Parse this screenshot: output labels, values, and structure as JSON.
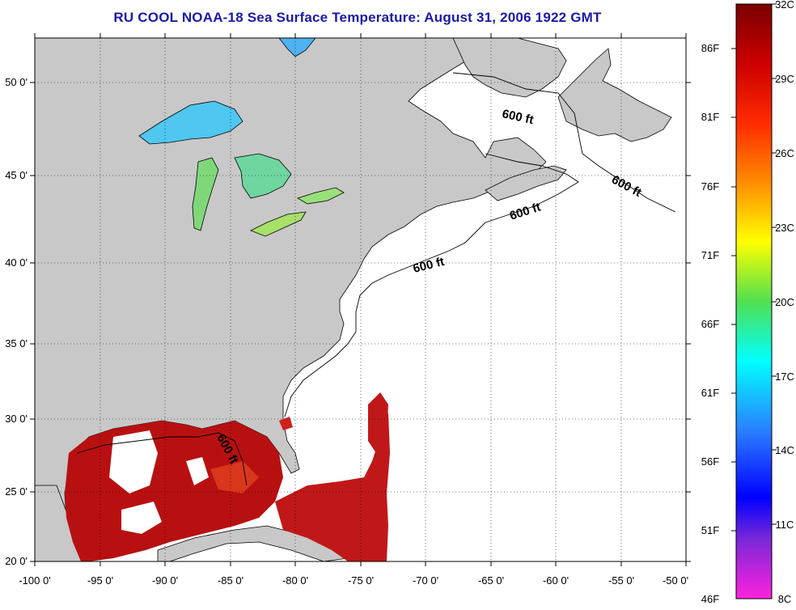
{
  "title": "RU COOL  NOAA-18  Sea Surface Temperature:  August 31, 2006 1922 GMT",
  "map": {
    "lat_labels": [
      "50 0'",
      "45 0'",
      "40 0'",
      "35 0'",
      "30 0'",
      "25 0'",
      "20 0'"
    ],
    "lon_labels": [
      "-100 0'",
      "-95 0'",
      "-90 0'",
      "-85 0'",
      "-80 0'",
      "-75 0'",
      "-70 0'",
      "-65 0'",
      "-60 0'",
      "-55 0'",
      "-50 0'"
    ],
    "contour_labels": [
      "600 ft",
      "600 ft",
      "600 ft",
      "600 ft",
      "600 ft"
    ],
    "land_color": "#c8c8c8",
    "ocean_color": "#ffffff"
  },
  "colorbar": {
    "fahrenheit_labels": [
      "86F",
      "81F",
      "76F",
      "71F",
      "66F",
      "61F",
      "56F",
      "51F",
      "46F"
    ],
    "celsius_labels": [
      "32C",
      "29C",
      "26C",
      "23C",
      "20C",
      "17C",
      "14C",
      "11C",
      "8C"
    ],
    "colors": [
      "#8b0000",
      "#ff0000",
      "#ff8c00",
      "#ffff00",
      "#3cd03c",
      "#00ffff",
      "#3a8cff",
      "#0000ff",
      "#8a2be2",
      "#ff00ff"
    ]
  }
}
